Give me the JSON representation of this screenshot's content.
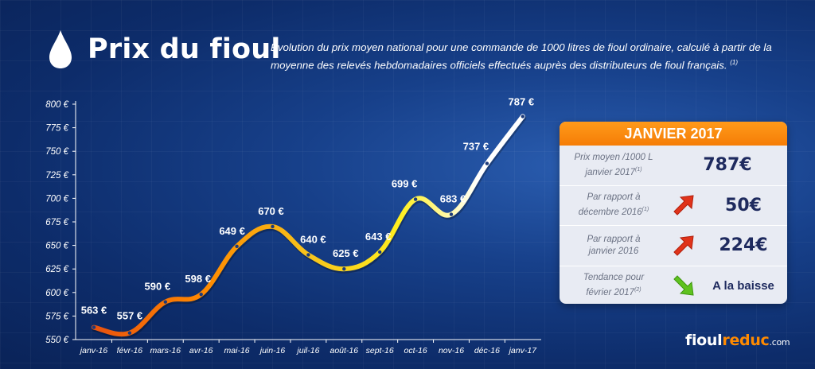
{
  "header": {
    "title": "Prix du fioul",
    "description_main": "Evolution du prix moyen national pour une commande de 1000 litres de fioul ordinaire, calculé à partir de la moyenne des relevés hebdomadaires officiels effectués auprès des distributeurs de fioul français.",
    "description_note": "(1)"
  },
  "chart_data": {
    "type": "line",
    "title": "",
    "xlabel": "",
    "ylabel": "",
    "categories": [
      "janv-16",
      "févr-16",
      "mars-16",
      "avr-16",
      "mai-16",
      "juin-16",
      "juil-16",
      "août-16",
      "sept-16",
      "oct-16",
      "nov-16",
      "déc-16",
      "janv-17"
    ],
    "values": [
      563,
      557,
      590,
      598,
      649,
      670,
      640,
      625,
      643,
      699,
      683,
      737,
      787
    ],
    "value_labels": [
      "563 €",
      "557 €",
      "590 €",
      "598 €",
      "649 €",
      "670 €",
      "640 €",
      "625 €",
      "643 €",
      "699 €",
      "683 €",
      "737 €",
      "787 €"
    ],
    "yticks": [
      550,
      575,
      600,
      625,
      650,
      675,
      700,
      725,
      750,
      775,
      800
    ],
    "ytick_labels": [
      "550 €",
      "575 €",
      "600 €",
      "625 €",
      "650 €",
      "675 €",
      "700 €",
      "725 €",
      "750 €",
      "775 €",
      "800 €"
    ],
    "ylim": [
      550,
      800
    ],
    "grid": false,
    "line_colors": [
      "#e8500f",
      "#ff8a00",
      "#f7c21b",
      "#ffef1f",
      "#ffffff"
    ]
  },
  "panel": {
    "header": "JANVIER 2017",
    "accent_color": "#f57d06",
    "rows": [
      {
        "label_line1": "Prix moyen /1000 L",
        "label_line2": "janvier 2017",
        "note": "(1)",
        "value": "787€",
        "icon": "none"
      },
      {
        "label_line1": "Par rapport à",
        "label_line2": "décembre 2016",
        "note": "(1)",
        "value": "50€",
        "icon": "arrow-up-right-red-icon"
      },
      {
        "label_line1": "Par rapport à",
        "label_line2": "janvier 2016",
        "note": "",
        "value": "224€",
        "icon": "arrow-up-right-red-icon"
      },
      {
        "label_line1": "Tendance pour",
        "label_line2": "février 2017",
        "note": "(2)",
        "value": "A la baisse",
        "icon": "arrow-down-right-green-icon"
      }
    ]
  },
  "brand": {
    "part1": "fioul",
    "part2": "reduc",
    "part3": ".com"
  }
}
